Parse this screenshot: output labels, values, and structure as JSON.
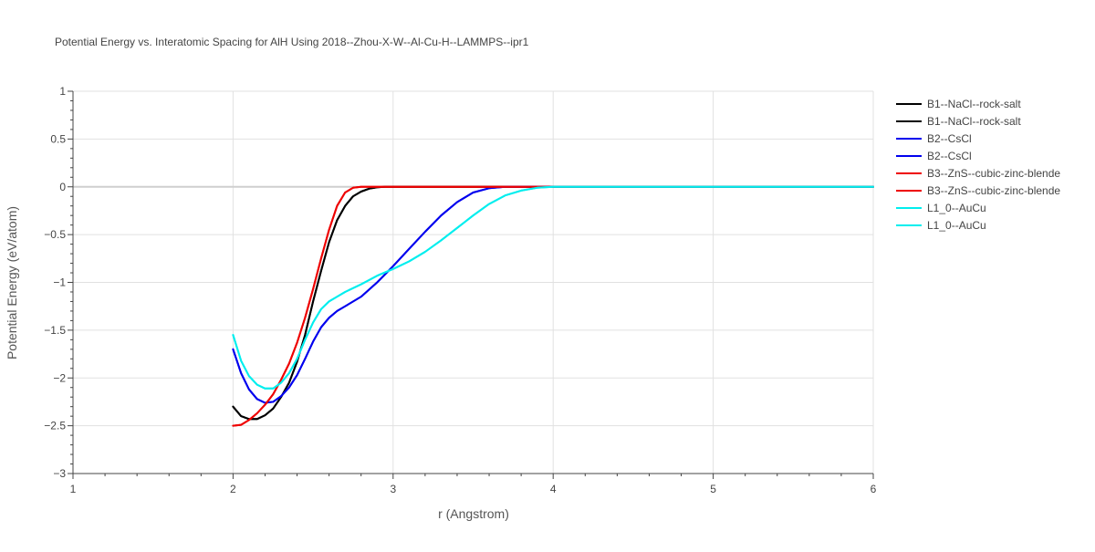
{
  "chart_data": {
    "type": "line",
    "title": "Potential Energy vs. Interatomic Spacing for AlH Using 2018--Zhou-X-W--Al-Cu-H--LAMMPS--ipr1",
    "xlabel": "r (Angstrom)",
    "ylabel": "Potential Energy (eV/atom)",
    "xlim": [
      1,
      6
    ],
    "ylim": [
      -3,
      1
    ],
    "xticks": [
      1,
      2,
      3,
      4,
      5,
      6
    ],
    "xtick_labels": [
      "1",
      "2",
      "3",
      "4",
      "5",
      "6"
    ],
    "yticks": [
      1,
      0.5,
      0,
      -0.5,
      -1,
      -1.5,
      -2,
      -2.5,
      -3
    ],
    "ytick_labels": [
      "1",
      "0.5",
      "0",
      "−0.5",
      "−1",
      "−1.5",
      "−2",
      "−2.5",
      "−3"
    ],
    "grid": true,
    "legend_position": "top-right",
    "series": [
      {
        "name": "B1--NaCl--rock-salt",
        "color": "#000000",
        "x": [
          2.0,
          2.05,
          2.1,
          2.15,
          2.2,
          2.25,
          2.3,
          2.35,
          2.4,
          2.45,
          2.5,
          2.55,
          2.6,
          2.65,
          2.7,
          2.75,
          2.8,
          2.85,
          2.9,
          2.95,
          3.0,
          3.5,
          4.0,
          5.0,
          6.0
        ],
        "y": [
          -2.3,
          -2.4,
          -2.43,
          -2.43,
          -2.39,
          -2.32,
          -2.2,
          -2.05,
          -1.83,
          -1.55,
          -1.2,
          -0.88,
          -0.58,
          -0.35,
          -0.2,
          -0.1,
          -0.05,
          -0.02,
          -0.005,
          0.0,
          0.0,
          0.0,
          0.0,
          0.0,
          0.0
        ]
      },
      {
        "name": "B1--NaCl--rock-salt",
        "color": "#000000",
        "x": [
          2.0,
          2.05,
          2.1,
          2.15,
          2.2,
          2.25,
          2.3,
          2.35,
          2.4,
          2.45,
          2.5,
          2.55,
          2.6,
          2.65,
          2.7,
          2.75,
          2.8,
          2.85,
          2.9,
          2.95,
          3.0,
          3.5,
          4.0,
          5.0,
          6.0
        ],
        "y": [
          -2.3,
          -2.4,
          -2.43,
          -2.43,
          -2.39,
          -2.32,
          -2.2,
          -2.05,
          -1.83,
          -1.55,
          -1.2,
          -0.88,
          -0.58,
          -0.35,
          -0.2,
          -0.1,
          -0.05,
          -0.02,
          -0.005,
          0.0,
          0.0,
          0.0,
          0.0,
          0.0,
          0.0
        ]
      },
      {
        "name": "B2--CsCl",
        "color": "#0000ee",
        "x": [
          2.0,
          2.05,
          2.1,
          2.15,
          2.2,
          2.25,
          2.3,
          2.35,
          2.4,
          2.45,
          2.5,
          2.55,
          2.6,
          2.65,
          2.7,
          2.8,
          2.9,
          3.0,
          3.1,
          3.2,
          3.3,
          3.4,
          3.5,
          3.6,
          3.7,
          3.8,
          4.0,
          5.0,
          6.0
        ],
        "y": [
          -1.7,
          -1.95,
          -2.12,
          -2.22,
          -2.26,
          -2.25,
          -2.19,
          -2.1,
          -1.97,
          -1.8,
          -1.62,
          -1.47,
          -1.37,
          -1.3,
          -1.25,
          -1.15,
          -1.0,
          -0.83,
          -0.65,
          -0.47,
          -0.3,
          -0.16,
          -0.06,
          -0.015,
          0.0,
          0.0,
          0.0,
          0.0,
          0.0
        ]
      },
      {
        "name": "B2--CsCl",
        "color": "#0000ee",
        "x": [
          2.0,
          2.05,
          2.1,
          2.15,
          2.2,
          2.25,
          2.3,
          2.35,
          2.4,
          2.45,
          2.5,
          2.55,
          2.6,
          2.65,
          2.7,
          2.8,
          2.9,
          3.0,
          3.1,
          3.2,
          3.3,
          3.4,
          3.5,
          3.6,
          3.7,
          3.8,
          4.0,
          5.0,
          6.0
        ],
        "y": [
          -1.7,
          -1.95,
          -2.12,
          -2.22,
          -2.26,
          -2.25,
          -2.19,
          -2.1,
          -1.97,
          -1.8,
          -1.62,
          -1.47,
          -1.37,
          -1.3,
          -1.25,
          -1.15,
          -1.0,
          -0.83,
          -0.65,
          -0.47,
          -0.3,
          -0.16,
          -0.06,
          -0.015,
          0.0,
          0.0,
          0.0,
          0.0,
          0.0
        ]
      },
      {
        "name": "B3--ZnS--cubic-zinc-blende",
        "color": "#ee0000",
        "x": [
          2.0,
          2.05,
          2.1,
          2.15,
          2.2,
          2.25,
          2.3,
          2.35,
          2.4,
          2.45,
          2.5,
          2.55,
          2.6,
          2.65,
          2.7,
          2.75,
          2.8,
          2.85,
          3.0,
          4.0,
          5.0,
          6.0
        ],
        "y": [
          -2.5,
          -2.49,
          -2.44,
          -2.37,
          -2.28,
          -2.17,
          -2.02,
          -1.85,
          -1.63,
          -1.37,
          -1.07,
          -0.75,
          -0.45,
          -0.2,
          -0.06,
          -0.01,
          0.0,
          0.0,
          0.0,
          0.0,
          0.0,
          0.0
        ]
      },
      {
        "name": "B3--ZnS--cubic-zinc-blende",
        "color": "#ee0000",
        "x": [
          2.0,
          2.05,
          2.1,
          2.15,
          2.2,
          2.25,
          2.3,
          2.35,
          2.4,
          2.45,
          2.5,
          2.55,
          2.6,
          2.65,
          2.7,
          2.75,
          2.8,
          2.85,
          3.0,
          4.0,
          5.0,
          6.0
        ],
        "y": [
          -2.5,
          -2.49,
          -2.44,
          -2.37,
          -2.28,
          -2.17,
          -2.02,
          -1.85,
          -1.63,
          -1.37,
          -1.07,
          -0.75,
          -0.45,
          -0.2,
          -0.06,
          -0.01,
          0.0,
          0.0,
          0.0,
          0.0,
          0.0,
          0.0
        ]
      },
      {
        "name": "L1_0--AuCu",
        "color": "#00eeee",
        "x": [
          2.0,
          2.05,
          2.1,
          2.15,
          2.2,
          2.25,
          2.3,
          2.35,
          2.4,
          2.45,
          2.5,
          2.55,
          2.6,
          2.65,
          2.7,
          2.8,
          2.9,
          3.0,
          3.1,
          3.2,
          3.3,
          3.4,
          3.5,
          3.6,
          3.7,
          3.8,
          3.9,
          4.0,
          5.0,
          6.0
        ],
        "y": [
          -1.55,
          -1.82,
          -1.98,
          -2.07,
          -2.11,
          -2.11,
          -2.05,
          -1.95,
          -1.8,
          -1.6,
          -1.42,
          -1.28,
          -1.2,
          -1.15,
          -1.1,
          -1.02,
          -0.93,
          -0.86,
          -0.78,
          -0.68,
          -0.56,
          -0.43,
          -0.3,
          -0.18,
          -0.09,
          -0.04,
          -0.01,
          0.0,
          0.0,
          0.0
        ]
      },
      {
        "name": "L1_0--AuCu",
        "color": "#00eeee",
        "x": [
          2.0,
          2.05,
          2.1,
          2.15,
          2.2,
          2.25,
          2.3,
          2.35,
          2.4,
          2.45,
          2.5,
          2.55,
          2.6,
          2.65,
          2.7,
          2.8,
          2.9,
          3.0,
          3.1,
          3.2,
          3.3,
          3.4,
          3.5,
          3.6,
          3.7,
          3.8,
          3.9,
          4.0,
          5.0,
          6.0
        ],
        "y": [
          -1.55,
          -1.82,
          -1.98,
          -2.07,
          -2.11,
          -2.11,
          -2.05,
          -1.95,
          -1.8,
          -1.6,
          -1.42,
          -1.28,
          -1.2,
          -1.15,
          -1.1,
          -1.02,
          -0.93,
          -0.86,
          -0.78,
          -0.68,
          -0.56,
          -0.43,
          -0.3,
          -0.18,
          -0.09,
          -0.04,
          -0.01,
          0.0,
          0.0,
          0.0
        ]
      }
    ]
  }
}
